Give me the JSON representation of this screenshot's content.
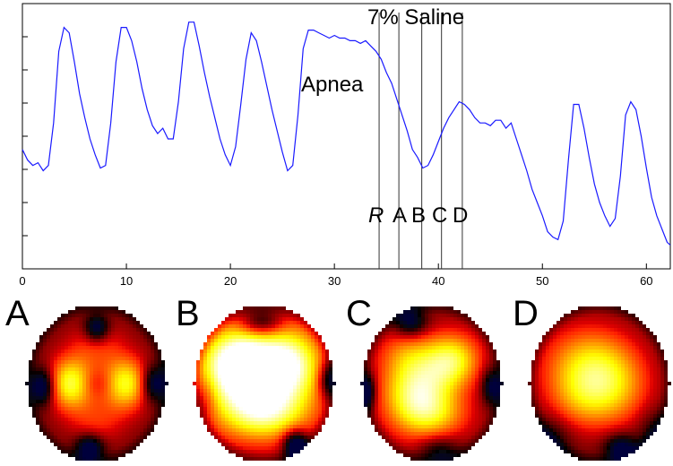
{
  "chart_data": [
    {
      "type": "line",
      "x_ticks": [
        0,
        10,
        20,
        30,
        40,
        50,
        60
      ],
      "xlim": [
        0,
        62.3
      ],
      "ylim": [
        0,
        1
      ],
      "grid": false,
      "line_color": "#1a1aff",
      "annotations": {
        "saline": "7% Saline",
        "apnea": "Apnea",
        "marker_R": "R",
        "marker_A": "A",
        "marker_B": "B",
        "marker_C": "C",
        "marker_D": "D"
      },
      "vertical_markers_x": [
        34.3,
        36.2,
        38.4,
        40.3,
        42.3
      ],
      "series": [
        {
          "x": [
            0.0,
            0.5,
            1.0,
            1.5,
            2.0,
            2.5,
            3.0,
            3.5,
            4.0,
            4.5,
            5.0,
            5.5,
            6.0,
            6.5,
            7.0,
            7.5,
            8.0,
            8.5,
            9.0,
            9.5,
            10.0,
            10.5,
            11.0,
            11.5,
            12.0,
            12.5,
            13.0,
            13.5,
            14.0,
            14.5,
            15.0,
            15.5,
            16.0,
            16.5,
            17.0,
            17.5,
            18.0,
            18.5,
            19.0,
            19.5,
            20.0,
            20.5,
            21.0,
            21.5,
            22.0,
            22.5,
            23.0,
            23.5,
            24.0,
            24.5,
            25.0,
            25.5,
            26.0,
            26.5,
            27.0,
            27.5,
            28.0,
            28.5,
            29.0,
            29.5,
            30.0,
            30.5,
            31.0,
            31.5,
            32.0,
            32.5,
            33.0,
            33.5,
            34.0,
            34.5,
            35.0,
            35.5,
            36.0,
            36.5,
            37.0,
            37.5,
            38.0,
            38.5,
            39.0,
            39.5,
            40.0,
            40.5,
            41.0,
            41.5,
            42.0,
            42.5,
            43.0,
            43.5,
            44.0,
            44.5,
            45.0,
            45.5,
            46.0,
            46.5,
            47.0,
            47.5,
            48.0,
            48.5,
            49.0,
            49.5,
            50.0,
            50.5,
            51.0,
            51.5,
            52.0,
            52.5,
            53.0,
            53.5,
            54.0,
            54.5,
            55.0,
            55.5,
            56.0,
            56.5,
            57.0,
            57.5,
            58.0,
            58.5,
            59.0,
            59.5,
            60.0,
            60.5,
            61.0,
            61.5,
            62.0,
            62.3
          ],
          "y": [
            0.45,
            0.41,
            0.39,
            0.4,
            0.37,
            0.39,
            0.55,
            0.82,
            0.91,
            0.89,
            0.78,
            0.66,
            0.57,
            0.49,
            0.43,
            0.38,
            0.39,
            0.55,
            0.78,
            0.91,
            0.91,
            0.86,
            0.78,
            0.68,
            0.6,
            0.54,
            0.51,
            0.53,
            0.49,
            0.49,
            0.63,
            0.83,
            0.93,
            0.93,
            0.84,
            0.74,
            0.65,
            0.57,
            0.49,
            0.43,
            0.39,
            0.46,
            0.62,
            0.79,
            0.89,
            0.86,
            0.78,
            0.69,
            0.6,
            0.52,
            0.44,
            0.37,
            0.39,
            0.58,
            0.83,
            0.9,
            0.9,
            0.89,
            0.88,
            0.87,
            0.88,
            0.87,
            0.87,
            0.86,
            0.86,
            0.85,
            0.86,
            0.84,
            0.82,
            0.79,
            0.74,
            0.7,
            0.64,
            0.58,
            0.52,
            0.45,
            0.42,
            0.38,
            0.39,
            0.43,
            0.48,
            0.53,
            0.57,
            0.6,
            0.63,
            0.62,
            0.6,
            0.57,
            0.55,
            0.55,
            0.54,
            0.56,
            0.56,
            0.53,
            0.55,
            0.49,
            0.43,
            0.37,
            0.3,
            0.25,
            0.2,
            0.14,
            0.12,
            0.11,
            0.18,
            0.41,
            0.62,
            0.62,
            0.53,
            0.42,
            0.32,
            0.25,
            0.2,
            0.16,
            0.19,
            0.35,
            0.58,
            0.63,
            0.6,
            0.5,
            0.38,
            0.27,
            0.2,
            0.15,
            0.1,
            0.09
          ]
        }
      ]
    }
  ],
  "panels": {
    "A": {
      "label": "A"
    },
    "B": {
      "label": "B"
    },
    "C": {
      "label": "C"
    },
    "D": {
      "label": "D"
    }
  }
}
